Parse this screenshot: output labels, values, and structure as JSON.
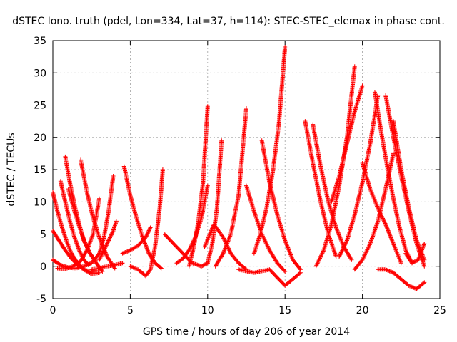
{
  "chart_data": {
    "type": "scatter",
    "title": "dSTEC Iono. truth (pdel, Lon=334, Lat=37, h=114): STEC-STEC_elemax in phase cont.",
    "xlabel": "GPS time / hours of day 206 of year 2014",
    "ylabel": "dSTEC  / TECUs",
    "xlim": [
      0,
      25
    ],
    "ylim": [
      -5,
      35
    ],
    "xticks": [
      "0",
      "5",
      "10",
      "15",
      "20",
      "25"
    ],
    "yticks": [
      "-5",
      "0",
      "5",
      "10",
      "15",
      "20",
      "25",
      "30",
      "35"
    ],
    "grid": true,
    "legend": "none",
    "marker": "+",
    "color": "#ff0000",
    "series": [
      {
        "x": [
          0.0,
          0.3,
          0.6,
          0.9,
          1.2,
          1.6,
          2.0,
          2.5,
          3.0
        ],
        "y": [
          11.5,
          8.5,
          6.0,
          3.8,
          2.0,
          0.5,
          -0.5,
          -1.2,
          -1.0
        ]
      },
      {
        "x": [
          0.0,
          0.4,
          0.8,
          1.2,
          1.6,
          2.0,
          2.4,
          2.8
        ],
        "y": [
          5.5,
          4.0,
          2.5,
          1.2,
          0.2,
          -0.5,
          -0.8,
          -0.7
        ]
      },
      {
        "x": [
          0.0,
          0.5,
          1.0,
          1.5,
          2.0
        ],
        "y": [
          1.0,
          0.2,
          -0.2,
          -0.3,
          0.0
        ]
      },
      {
        "x": [
          0.5,
          0.8,
          1.1,
          1.4,
          1.7,
          2.0,
          2.3
        ],
        "y": [
          13.2,
          10.0,
          7.0,
          4.5,
          2.5,
          1.0,
          0.2
        ]
      },
      {
        "x": [
          0.8,
          1.1,
          1.4,
          1.7,
          2.0,
          2.4,
          2.8
        ],
        "y": [
          17.0,
          13.0,
          9.5,
          6.5,
          4.0,
          2.0,
          0.8
        ]
      },
      {
        "x": [
          1.0,
          1.4,
          1.8,
          2.1,
          2.4,
          2.8,
          3.2
        ],
        "y": [
          12.0,
          8.5,
          5.5,
          3.5,
          2.0,
          0.5,
          -0.8
        ]
      },
      {
        "x": [
          0.3,
          0.8,
          1.3,
          1.8,
          2.2,
          2.6,
          3.0
        ],
        "y": [
          -0.3,
          -0.4,
          0.0,
          0.8,
          2.5,
          5.0,
          10.5
        ]
      },
      {
        "x": [
          1.8,
          2.2,
          2.6,
          3.0,
          3.5,
          4.0
        ],
        "y": [
          16.5,
          11.5,
          7.5,
          4.5,
          1.5,
          -0.3
        ]
      },
      {
        "x": [
          2.0,
          2.5,
          3.0,
          3.3,
          3.6,
          3.9
        ],
        "y": [
          0.0,
          0.5,
          2.0,
          4.5,
          8.5,
          14.0
        ]
      },
      {
        "x": [
          2.5,
          3.0,
          3.5,
          4.0,
          4.5
        ],
        "y": [
          -0.5,
          -0.3,
          0.0,
          0.2,
          0.5
        ]
      },
      {
        "x": [
          3.0,
          3.3,
          3.6,
          3.9,
          4.1
        ],
        "y": [
          1.0,
          2.5,
          4.0,
          5.5,
          7.0
        ]
      },
      {
        "x": [
          4.6,
          5.0,
          5.4,
          5.8,
          6.2,
          6.6,
          7.0
        ],
        "y": [
          15.5,
          11.0,
          7.5,
          4.5,
          2.0,
          0.5,
          -0.3
        ]
      },
      {
        "x": [
          4.5,
          5.0,
          5.5,
          6.0,
          6.3
        ],
        "y": [
          2.0,
          2.5,
          3.2,
          4.5,
          6.0
        ]
      },
      {
        "x": [
          5.0,
          5.5,
          6.0,
          6.3,
          6.6,
          6.9,
          7.1
        ],
        "y": [
          0.0,
          -0.5,
          -1.5,
          -0.5,
          3.0,
          9.0,
          15.0
        ]
      },
      {
        "x": [
          7.2,
          7.8,
          8.4,
          9.0,
          9.6,
          10.0
        ],
        "y": [
          5.0,
          3.5,
          2.0,
          0.5,
          0.0,
          0.5
        ]
      },
      {
        "x": [
          8.0,
          8.4,
          8.8,
          9.2,
          9.6,
          10.0
        ],
        "y": [
          0.5,
          1.2,
          2.5,
          4.5,
          7.5,
          12.5
        ]
      },
      {
        "x": [
          8.8,
          9.1,
          9.4,
          9.7,
          10.0
        ],
        "y": [
          0.0,
          3.0,
          7.0,
          13.0,
          24.8
        ]
      },
      {
        "x": [
          10.0,
          10.3,
          10.6,
          10.9
        ],
        "y": [
          0.5,
          3.5,
          9.0,
          19.5
        ]
      },
      {
        "x": [
          9.8,
          10.4,
          11.0,
          11.5,
          12.0,
          12.5
        ],
        "y": [
          3.0,
          6.5,
          4.5,
          2.0,
          0.5,
          -0.5
        ]
      },
      {
        "x": [
          10.5,
          11.0,
          11.5,
          12.0,
          12.5
        ],
        "y": [
          0.0,
          2.0,
          5.0,
          11.0,
          24.5
        ]
      },
      {
        "x": [
          12.5,
          13.0,
          13.5,
          14.0,
          14.5,
          15.0
        ],
        "y": [
          12.5,
          8.5,
          5.0,
          2.5,
          0.5,
          -0.8
        ]
      },
      {
        "x": [
          13.0,
          13.4,
          13.8,
          14.2,
          14.6,
          15.0
        ],
        "y": [
          2.0,
          5.0,
          9.0,
          14.5,
          22.0,
          34.0
        ]
      },
      {
        "x": [
          13.5,
          14.0,
          14.5,
          15.0,
          15.5,
          16.0
        ],
        "y": [
          19.5,
          13.0,
          8.0,
          4.0,
          1.0,
          -0.5
        ]
      },
      {
        "x": [
          12.0,
          13.0,
          14.0,
          15.0,
          16.0
        ],
        "y": [
          -0.5,
          -1.0,
          -0.5,
          -3.0,
          -1.0
        ]
      },
      {
        "x": [
          16.3,
          16.8,
          17.3,
          17.8,
          18.3
        ],
        "y": [
          22.5,
          16.0,
          10.0,
          5.0,
          1.5
        ]
      },
      {
        "x": [
          16.8,
          17.3,
          17.8,
          18.3,
          18.8,
          19.3
        ],
        "y": [
          22.0,
          15.5,
          10.0,
          6.0,
          3.0,
          1.0
        ]
      },
      {
        "x": [
          17.0,
          17.5,
          18.0,
          18.5,
          19.0,
          19.5
        ],
        "y": [
          0.0,
          2.5,
          6.5,
          12.5,
          20.0,
          31.0
        ]
      },
      {
        "x": [
          18.0,
          18.5,
          19.0,
          19.5,
          20.0
        ],
        "y": [
          10.0,
          14.0,
          19.0,
          24.0,
          28.0
        ]
      },
      {
        "x": [
          18.5,
          19.0,
          19.5,
          20.0,
          20.5,
          21.0
        ],
        "y": [
          1.5,
          4.0,
          8.0,
          13.0,
          19.0,
          26.5
        ]
      },
      {
        "x": [
          20.0,
          20.5,
          21.0,
          21.5,
          22.0,
          22.5
        ],
        "y": [
          16.0,
          12.0,
          9.0,
          6.5,
          3.5,
          0.5
        ]
      },
      {
        "x": [
          20.8,
          21.2,
          21.6,
          22.0,
          22.4,
          22.8,
          23.2
        ],
        "y": [
          27.0,
          21.0,
          15.5,
          10.5,
          6.0,
          2.5,
          0.5
        ]
      },
      {
        "x": [
          21.5,
          22.0,
          22.5,
          23.0,
          23.5,
          24.0
        ],
        "y": [
          26.5,
          20.0,
          14.0,
          8.5,
          3.5,
          0.0
        ]
      },
      {
        "x": [
          22.0,
          22.5,
          23.0,
          23.5,
          24.0
        ],
        "y": [
          22.5,
          15.0,
          9.0,
          4.0,
          1.0
        ]
      },
      {
        "x": [
          21.0,
          21.5,
          22.0,
          22.5,
          23.0,
          23.5,
          24.0
        ],
        "y": [
          -0.5,
          -0.5,
          -1.0,
          -2.0,
          -3.0,
          -3.5,
          -2.5
        ]
      },
      {
        "x": [
          19.5,
          20.0,
          20.5,
          21.0,
          21.5,
          22.0
        ],
        "y": [
          -0.5,
          1.0,
          3.5,
          7.0,
          12.0,
          17.5
        ]
      },
      {
        "x": [
          22.8,
          23.2,
          23.6,
          24.0
        ],
        "y": [
          2.0,
          0.5,
          1.0,
          3.5
        ]
      }
    ]
  }
}
